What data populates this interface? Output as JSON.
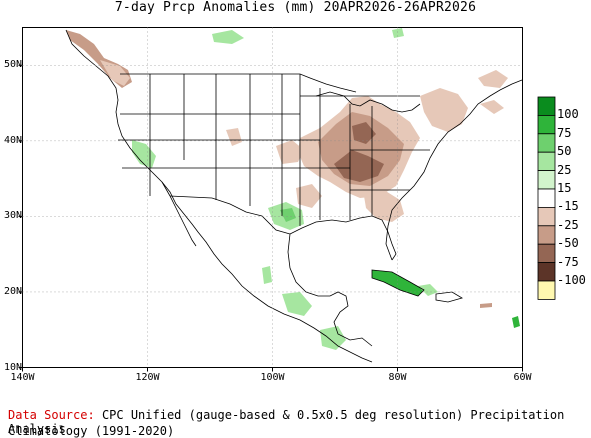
{
  "title": "7-day Prcp Anomalies (mm) 20APR2026-26APR2026",
  "map": {
    "lat_ticks": [
      "50N",
      "40N",
      "30N",
      "20N",
      "10N"
    ],
    "lon_ticks": [
      "140W",
      "120W",
      "100W",
      "80W",
      "60W"
    ],
    "lat_values": [
      50,
      40,
      30,
      20,
      10
    ],
    "lon_values": [
      -140,
      -120,
      -100,
      -80,
      -60
    ],
    "extent": {
      "lon_min": -140,
      "lon_max": -60,
      "lat_min": 10,
      "lat_max": 55
    }
  },
  "colorbar": {
    "labels": [
      "100",
      "75",
      "50",
      "25",
      "15",
      "-15",
      "-25",
      "-50",
      "-75",
      "-100"
    ],
    "colors": [
      "#0a8c1e",
      "#2fb43a",
      "#6ed06e",
      "#a6e6a0",
      "#d2f4cc",
      "#ffffff",
      "#e6c8b8",
      "#c79c88",
      "#946654",
      "#5c3428",
      "#fff8b0"
    ]
  },
  "footer": {
    "source_label": "Data Source:",
    "source_text": "CPC Unified (gauge-based & 0.5x0.5 deg resolution) Precipitation Analysis",
    "climatology": "Climatology (1991-2020)"
  },
  "colors": {
    "dry_light": "#e6c8b8",
    "dry_mid": "#c79c88",
    "dry_dark": "#946654",
    "wet_light": "#a6e6a0",
    "wet_mid": "#6ed06e",
    "wet_strong": "#2fb43a"
  }
}
